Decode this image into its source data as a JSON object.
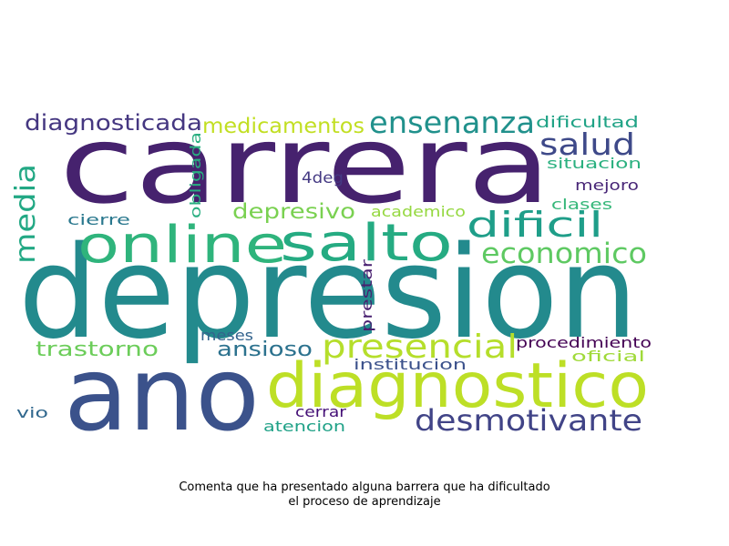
{
  "caption": {
    "line1": "Comenta que ha presentado alguna barrera que ha dificultado",
    "line2": "el proceso de aprendizaje"
  },
  "words": [
    {
      "id": "w-depresion",
      "text": "depresion",
      "color": "#238a8d"
    },
    {
      "id": "w-carrera",
      "text": "carrera",
      "color": "#46226e"
    },
    {
      "id": "w-ano",
      "text": "ano",
      "color": "#3b528b"
    },
    {
      "id": "w-diagnostico",
      "text": "diagnostico",
      "color": "#bddf26"
    },
    {
      "id": "w-online",
      "text": "online",
      "color": "#2fb47c"
    },
    {
      "id": "w-salto",
      "text": "salto",
      "color": "#25ab82"
    },
    {
      "id": "w-presencial",
      "text": "presencial",
      "color": "#b5de2b"
    },
    {
      "id": "w-desmotivante",
      "text": "desmotivante",
      "color": "#414487"
    },
    {
      "id": "w-ensenanza",
      "text": "ensenanza",
      "color": "#21918c"
    },
    {
      "id": "w-dificil",
      "text": "dificil",
      "color": "#1f9e89"
    },
    {
      "id": "w-economico",
      "text": "economico",
      "color": "#5ec962"
    },
    {
      "id": "w-salud",
      "text": "salud",
      "color": "#3e4989"
    },
    {
      "id": "w-diagnosticada",
      "text": "diagnosticada",
      "color": "#453781"
    },
    {
      "id": "w-medicamentos",
      "text": "medicamentos",
      "color": "#c2df23"
    },
    {
      "id": "w-media",
      "text": "media",
      "color": "#22a884"
    },
    {
      "id": "w-depresivo",
      "text": "depresivo",
      "color": "#7ad151"
    },
    {
      "id": "w-trastorno",
      "text": "trastorno",
      "color": "#6ccd5a"
    },
    {
      "id": "w-ansioso",
      "text": "ansioso",
      "color": "#2c728e"
    },
    {
      "id": "w-dificultad",
      "text": "dificultad",
      "color": "#20a386"
    },
    {
      "id": "w-situacion",
      "text": "situacion",
      "color": "#2ab07f"
    },
    {
      "id": "w-obligada",
      "text": "obligada",
      "color": "#28ae80"
    },
    {
      "id": "w-4deg",
      "text": "4deg",
      "color": "#443983"
    },
    {
      "id": "w-mejoro",
      "text": "mejoro",
      "color": "#482677"
    },
    {
      "id": "w-clases",
      "text": "clases",
      "color": "#35b779"
    },
    {
      "id": "w-cierre",
      "text": "cierre",
      "color": "#2a788e"
    },
    {
      "id": "w-academico",
      "text": "academico",
      "color": "#95d840"
    },
    {
      "id": "w-prestar",
      "text": "prestar",
      "color": "#481f70"
    },
    {
      "id": "w-meses",
      "text": "meses",
      "color": "#33638d"
    },
    {
      "id": "w-procedimiento",
      "text": "procedimiento",
      "color": "#440154"
    },
    {
      "id": "w-oficial",
      "text": "oficial",
      "color": "#a0da39"
    },
    {
      "id": "w-institucion",
      "text": "institucion",
      "color": "#3b518b"
    },
    {
      "id": "w-vio",
      "text": "vio",
      "color": "#31688e"
    },
    {
      "id": "w-cerrar",
      "text": "cerrar",
      "color": "#440f76"
    },
    {
      "id": "w-atencion",
      "text": "atencion",
      "color": "#1fa187"
    }
  ]
}
